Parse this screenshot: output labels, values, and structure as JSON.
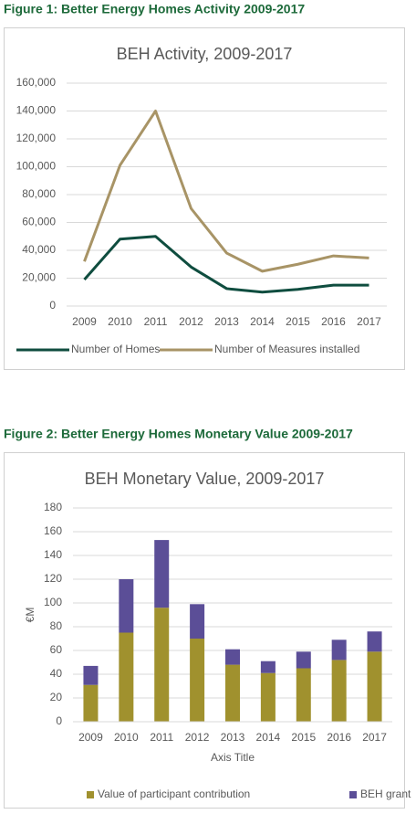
{
  "captions": [
    "Figure 1: Better Energy Homes Activity 2009-2017",
    "Figure 2: Better Energy Homes Monetary Value 2009-2017"
  ],
  "chart_data": [
    {
      "type": "line",
      "title": "BEH Activity, 2009-2017",
      "categories": [
        "2009",
        "2010",
        "2011",
        "2012",
        "2013",
        "2014",
        "2015",
        "2016",
        "2017"
      ],
      "series": [
        {
          "name": "Number of Homes",
          "color": "#0f4d3f",
          "values": [
            19000,
            48000,
            50000,
            28000,
            12500,
            10000,
            12000,
            15000,
            15000
          ]
        },
        {
          "name": "Number of Measures installed",
          "color": "#a89466",
          "values": [
            32000,
            101000,
            140000,
            70000,
            38000,
            25000,
            30000,
            36000,
            34500
          ]
        }
      ],
      "ylim": [
        0,
        160000
      ],
      "yticks": [
        0,
        {
          "value": 20000,
          "label": "20,000"
        },
        {
          "value": 40000,
          "label": "40,000"
        },
        {
          "value": 60000,
          "label": "60,000"
        },
        {
          "value": 80000,
          "label": "80,000"
        },
        {
          "value": 100000,
          "label": "100,000"
        },
        {
          "value": 120000,
          "label": "120,000"
        },
        {
          "value": 140000,
          "label": "140,000"
        },
        {
          "value": 160000,
          "label": "160,000"
        }
      ],
      "grid": true,
      "legend": "bottom"
    },
    {
      "type": "bar",
      "stacked": true,
      "title": "BEH Monetary Value, 2009-2017",
      "x_label": "Axis Title",
      "y_label": "€M",
      "categories": [
        "2009",
        "2010",
        "2011",
        "2012",
        "2013",
        "2014",
        "2015",
        "2016",
        "2017"
      ],
      "series": [
        {
          "name": "Value of participant contribution",
          "color": "#a0912e",
          "values": [
            31,
            75,
            96,
            70,
            48,
            41,
            45,
            52,
            59
          ]
        },
        {
          "name": "BEH grant",
          "color": "#5b4e97",
          "values": [
            16,
            45,
            57,
            29,
            13,
            10,
            14,
            17,
            17
          ]
        }
      ],
      "ylim": [
        0,
        180
      ],
      "yticks": [
        0,
        20,
        40,
        60,
        80,
        100,
        120,
        140,
        160,
        180
      ],
      "grid": true,
      "legend": "bottom"
    }
  ]
}
